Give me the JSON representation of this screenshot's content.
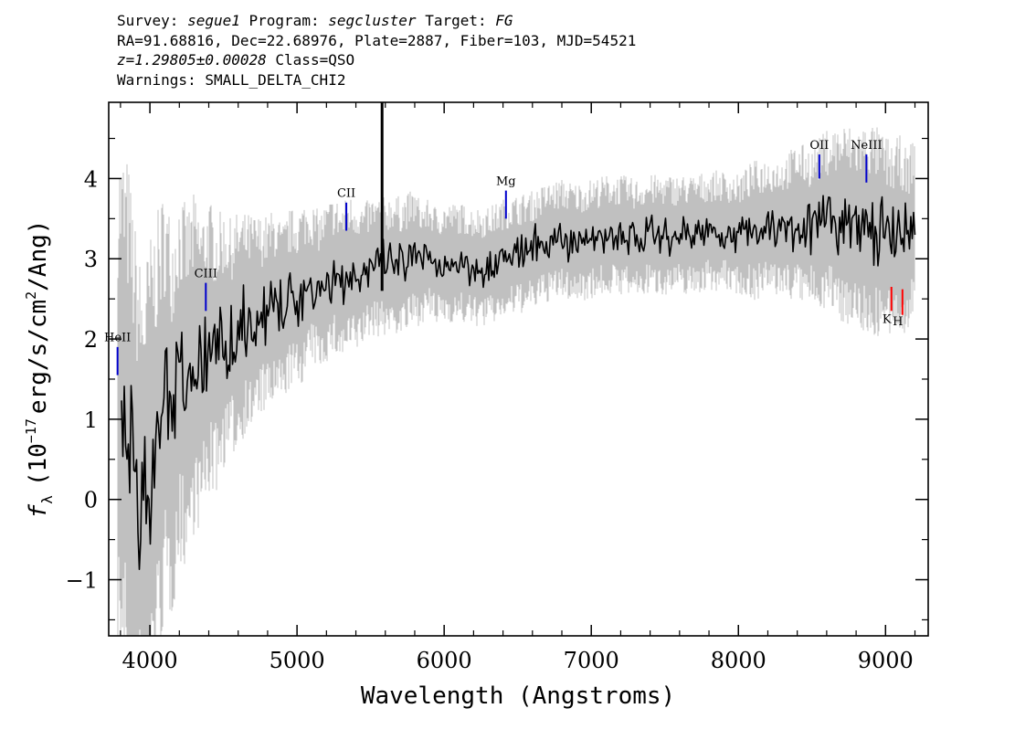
{
  "header": {
    "survey_label": "Survey:",
    "survey": "segue1",
    "program_label": "Program:",
    "program": "segcluster",
    "target_label": "Target:",
    "target": "FG",
    "line2": "RA=91.68816, Dec=22.68976, Plate=2887, Fiber=103, MJD=54521",
    "redshift": "z=1.29805±0.00028",
    "class_text": "Class=QSO",
    "warnings": "Warnings: SMALL_DELTA_CHI2"
  },
  "chart_data": {
    "type": "line",
    "xlabel": "Wavelength (Angstroms)",
    "ylabel_prefix": "f",
    "ylabel_sub": "λ",
    "ylabel_main": "(10",
    "ylabel_exp": "−17",
    "ylabel_rest": "erg/s/cm",
    "ylabel_exp2": "2",
    "ylabel_end": "/Ang)",
    "xlim": [
      3720,
      9290
    ],
    "ylim": [
      -1.7,
      4.95
    ],
    "x_ticks": [
      4000,
      5000,
      6000,
      7000,
      8000,
      9000
    ],
    "x_tick_labels": [
      "4000",
      "5000",
      "6000",
      "7000",
      "8000",
      "9000"
    ],
    "y_ticks": [
      -1,
      0,
      1,
      2,
      3,
      4
    ],
    "y_tick_labels": [
      "−1",
      "0",
      "1",
      "2",
      "3",
      "4"
    ],
    "series": [
      {
        "role": "flux",
        "color": "#000000",
        "x": [
          3800,
          3850,
          3900,
          3950,
          4000,
          4050,
          4100,
          4150,
          4200,
          4250,
          4300,
          4350,
          4400,
          4450,
          4500,
          4550,
          4600,
          4650,
          4700,
          4750,
          4800,
          4850,
          4900,
          4950,
          5000,
          5050,
          5100,
          5150,
          5200,
          5250,
          5300,
          5350,
          5400,
          5450,
          5500,
          5550,
          5600,
          5650,
          5700,
          5750,
          5800,
          5850,
          5900,
          5950,
          6000,
          6100,
          6200,
          6300,
          6400,
          6500,
          6600,
          6700,
          6800,
          6900,
          7000,
          7100,
          7200,
          7300,
          7400,
          7500,
          7600,
          7700,
          7800,
          7900,
          8000,
          8100,
          8200,
          8300,
          8400,
          8500,
          8600,
          8700,
          8800,
          8900,
          9000,
          9050,
          9100,
          9150,
          9200
        ],
        "y": [
          1.2,
          0.8,
          0.2,
          -0.2,
          0.3,
          0.7,
          1.2,
          1.0,
          1.5,
          1.4,
          1.7,
          1.6,
          1.9,
          1.8,
          2.0,
          2.0,
          2.1,
          2.2,
          2.2,
          2.3,
          2.3,
          2.4,
          2.3,
          2.5,
          2.5,
          2.6,
          2.7,
          2.6,
          2.7,
          2.8,
          2.7,
          2.8,
          2.8,
          2.8,
          2.9,
          2.9,
          2.9,
          2.95,
          2.9,
          2.95,
          3.0,
          2.95,
          3.0,
          2.9,
          2.95,
          2.95,
          2.9,
          2.9,
          3.0,
          3.05,
          3.1,
          3.2,
          3.25,
          3.2,
          3.25,
          3.3,
          3.3,
          3.25,
          3.3,
          3.3,
          3.3,
          3.3,
          3.35,
          3.35,
          3.3,
          3.35,
          3.4,
          3.4,
          3.45,
          3.4,
          3.5,
          3.45,
          3.4,
          3.35,
          3.3,
          3.2,
          3.3,
          3.2,
          3.5
        ]
      },
      {
        "role": "uncertainty",
        "color": "#c0c0c0",
        "x": [
          3800,
          3850,
          3900,
          3950,
          4000,
          4050,
          4100,
          4150,
          4200,
          4250,
          4300,
          4350,
          4400,
          4450,
          4500,
          4550,
          4600,
          4650,
          4700,
          4750,
          4800,
          4850,
          4900,
          4950,
          5000,
          5050,
          5100,
          5150,
          5200,
          5250,
          5300,
          5350,
          5400,
          5450,
          5500,
          5550,
          5600,
          5650,
          5700,
          5750,
          5800,
          5850,
          5900,
          5950,
          6000,
          6100,
          6200,
          6300,
          6400,
          6500,
          6600,
          6700,
          6800,
          6900,
          7000,
          7100,
          7200,
          7300,
          7400,
          7500,
          7600,
          7700,
          7800,
          7900,
          8000,
          8100,
          8200,
          8300,
          8400,
          8500,
          8600,
          8700,
          8800,
          8900,
          9000,
          9050,
          9100,
          9150,
          9200
        ],
        "y": [
          1.3,
          1.4,
          1.3,
          1.2,
          1.2,
          1.15,
          1.1,
          1.0,
          0.95,
          0.9,
          0.85,
          0.8,
          0.75,
          0.7,
          0.65,
          0.6,
          0.6,
          0.55,
          0.55,
          0.5,
          0.5,
          0.5,
          0.45,
          0.45,
          0.45,
          0.45,
          0.4,
          0.4,
          0.4,
          0.4,
          0.4,
          0.4,
          0.4,
          0.35,
          0.35,
          0.35,
          0.35,
          0.35,
          0.35,
          0.35,
          0.35,
          0.3,
          0.3,
          0.3,
          0.3,
          0.3,
          0.3,
          0.3,
          0.3,
          0.3,
          0.3,
          0.3,
          0.3,
          0.3,
          0.3,
          0.3,
          0.3,
          0.3,
          0.3,
          0.3,
          0.3,
          0.3,
          0.3,
          0.3,
          0.3,
          0.35,
          0.35,
          0.35,
          0.4,
          0.4,
          0.45,
          0.5,
          0.5,
          0.55,
          0.5,
          0.5,
          0.5,
          0.45,
          0.45
        ]
      }
    ],
    "spike": {
      "x": 5578,
      "y_top": 4.95,
      "y_bottom": 2.6
    },
    "emission_lines": [
      {
        "label": "HeII",
        "x": 3780,
        "y_top": 1.9,
        "y_bottom": 1.55,
        "label_y": 1.97,
        "color": "#0000cc"
      },
      {
        "label": "CIII",
        "x": 4380,
        "y_top": 2.7,
        "y_bottom": 2.35,
        "label_y": 2.77,
        "color": "#0000cc"
      },
      {
        "label": "CII",
        "x": 5335,
        "y_top": 3.7,
        "y_bottom": 3.35,
        "label_y": 3.77,
        "color": "#0000cc"
      },
      {
        "label": "Mg",
        "x": 6420,
        "y_top": 3.85,
        "y_bottom": 3.5,
        "label_y": 3.92,
        "color": "#0000cc"
      },
      {
        "label": "OII",
        "x": 8550,
        "y_top": 4.3,
        "y_bottom": 4.0,
        "label_y": 4.37,
        "color": "#0000cc"
      },
      {
        "label": "NeIII",
        "x": 8870,
        "y_top": 4.3,
        "y_bottom": 3.95,
        "label_y": 4.37,
        "color": "#0000cc"
      }
    ],
    "absorption_lines": [
      {
        "label": "K",
        "x": 9040,
        "y_top": 2.65,
        "y_bottom": 2.35,
        "label_y": 2.2,
        "color": "#ff0000"
      },
      {
        "label": "H",
        "x": 9115,
        "y_top": 2.62,
        "y_bottom": 2.3,
        "label_y": 2.17,
        "color": "#ff0000"
      }
    ]
  }
}
